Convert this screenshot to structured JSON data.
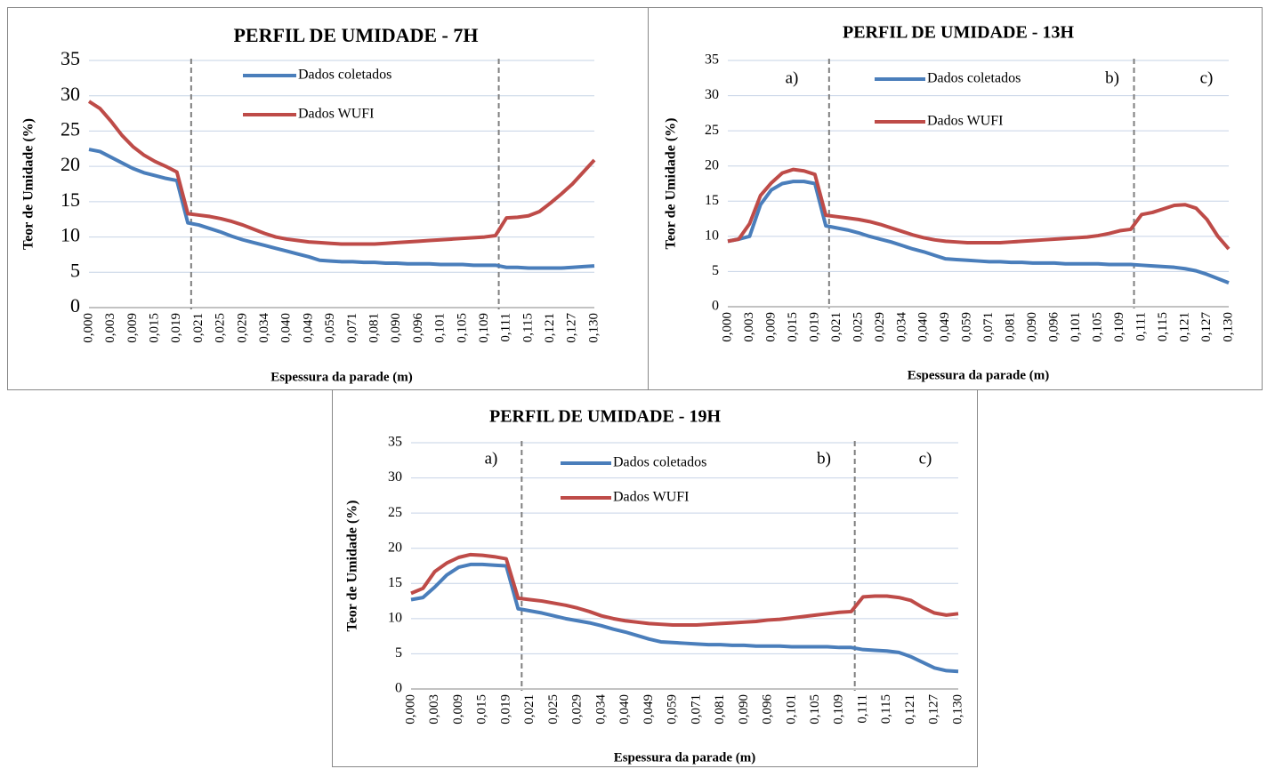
{
  "chart_data": [
    {
      "type": "line",
      "title": "PERFIL DE UMIDADE - 7H",
      "y_label": "Teor de Umidade (%)",
      "x_label": "Espessura da parade (m)",
      "categories": [
        "0,000",
        null,
        "0,003",
        null,
        "0,009",
        null,
        "0,015",
        null,
        "0,019",
        null,
        "0,021",
        null,
        "0,025",
        null,
        "0,029",
        null,
        "0,034",
        null,
        "0,040",
        null,
        "0,049",
        null,
        "0,059",
        null,
        "0,071",
        null,
        "0,081",
        null,
        "0,090",
        null,
        "0,096",
        null,
        "0,101",
        null,
        "0,105",
        null,
        "0,109",
        null,
        "0,111",
        null,
        "0,115",
        null,
        "0,121",
        null,
        "0,127",
        null,
        "0,130"
      ],
      "series": [
        {
          "name": "Dados coletados",
          "color": "#4a7ebb",
          "values": [
            22.4,
            22.1,
            21.3,
            20.5,
            19.7,
            19.1,
            18.7,
            18.3,
            18.0,
            12.0,
            11.7,
            11.2,
            10.7,
            10.1,
            9.6,
            9.2,
            8.8,
            8.4,
            8.0,
            7.6,
            7.2,
            6.7,
            6.6,
            6.5,
            6.5,
            6.4,
            6.4,
            6.3,
            6.3,
            6.2,
            6.2,
            6.2,
            6.1,
            6.1,
            6.1,
            6.0,
            6.0,
            6.0,
            5.7,
            5.7,
            5.6,
            5.6,
            5.6,
            5.6,
            5.7,
            5.8,
            5.9
          ]
        },
        {
          "name": "Dados WUFI",
          "color": "#be4b48",
          "values": [
            29.2,
            28.2,
            26.4,
            24.4,
            22.8,
            21.6,
            20.7,
            20.0,
            19.2,
            13.3,
            13.1,
            12.9,
            12.6,
            12.2,
            11.7,
            11.1,
            10.5,
            10.0,
            9.7,
            9.5,
            9.3,
            9.2,
            9.1,
            9.0,
            9.0,
            9.0,
            9.0,
            9.1,
            9.2,
            9.3,
            9.4,
            9.5,
            9.6,
            9.7,
            9.8,
            9.9,
            10.0,
            10.2,
            12.7,
            12.8,
            13.0,
            13.6,
            14.8,
            16.1,
            17.5,
            19.2,
            20.9
          ]
        }
      ],
      "ylim": [
        0,
        35
      ],
      "yticks": [
        0,
        5,
        10,
        15,
        20,
        25,
        30,
        35
      ],
      "grid": true
    },
    {
      "type": "line",
      "title": "PERFIL DE UMIDADE - 13H",
      "y_label": "Teor de Umidade (%)",
      "x_label": "Espessura da parade (m)",
      "annotations": [
        "a)",
        "b)",
        "c)"
      ],
      "categories": [
        "0,000",
        null,
        "0,003",
        null,
        "0,009",
        null,
        "0,015",
        null,
        "0,019",
        null,
        "0,021",
        null,
        "0,025",
        null,
        "0,029",
        null,
        "0,034",
        null,
        "0,040",
        null,
        "0,049",
        null,
        "0,059",
        null,
        "0,071",
        null,
        "0,081",
        null,
        "0,090",
        null,
        "0,096",
        null,
        "0,101",
        null,
        "0,105",
        null,
        "0,109",
        null,
        "0,111",
        null,
        "0,115",
        null,
        "0,121",
        null,
        "0,127",
        null,
        "0,130"
      ],
      "series": [
        {
          "name": "Dados coletados",
          "color": "#4a7ebb",
          "values": [
            9.3,
            9.6,
            10.0,
            14.5,
            16.6,
            17.5,
            17.8,
            17.8,
            17.5,
            11.5,
            11.2,
            10.9,
            10.5,
            10.0,
            9.6,
            9.2,
            8.7,
            8.2,
            7.8,
            7.3,
            6.8,
            6.7,
            6.6,
            6.5,
            6.4,
            6.4,
            6.3,
            6.3,
            6.2,
            6.2,
            6.2,
            6.1,
            6.1,
            6.1,
            6.1,
            6.0,
            6.0,
            6.0,
            5.9,
            5.8,
            5.7,
            5.6,
            5.4,
            5.1,
            4.6,
            4.0,
            3.4
          ]
        },
        {
          "name": "Dados WUFI",
          "color": "#be4b48",
          "values": [
            9.3,
            9.6,
            11.8,
            15.8,
            17.6,
            19.0,
            19.5,
            19.3,
            18.8,
            13.0,
            12.8,
            12.6,
            12.4,
            12.1,
            11.7,
            11.2,
            10.7,
            10.2,
            9.8,
            9.5,
            9.3,
            9.2,
            9.1,
            9.1,
            9.1,
            9.1,
            9.2,
            9.3,
            9.4,
            9.5,
            9.6,
            9.7,
            9.8,
            9.9,
            10.1,
            10.4,
            10.8,
            11.0,
            13.1,
            13.4,
            13.9,
            14.4,
            14.5,
            14.0,
            12.4,
            10.0,
            8.2
          ]
        }
      ],
      "ylim": [
        0,
        35
      ],
      "yticks": [
        0,
        5,
        10,
        15,
        20,
        25,
        30,
        35
      ],
      "grid": true
    },
    {
      "type": "line",
      "title": "PERFIL DE UMIDADE - 19H",
      "y_label": "Teor de Umidade (%)",
      "x_label": "Espessura da parade (m)",
      "annotations": [
        "a)",
        "b)",
        "c)"
      ],
      "categories": [
        "0,000",
        null,
        "0,003",
        null,
        "0,009",
        null,
        "0,015",
        null,
        "0,019",
        null,
        "0,021",
        null,
        "0,025",
        null,
        "0,029",
        null,
        "0,034",
        null,
        "0,040",
        null,
        "0,049",
        null,
        "0,059",
        null,
        "0,071",
        null,
        "0,081",
        null,
        "0,090",
        null,
        "0,096",
        null,
        "0,101",
        null,
        "0,105",
        null,
        "0,109",
        null,
        "0,111",
        null,
        "0,115",
        null,
        "0,121",
        null,
        "0,127",
        null,
        "0,130"
      ],
      "series": [
        {
          "name": "Dados coletados",
          "color": "#4a7ebb",
          "values": [
            12.7,
            13.0,
            14.5,
            16.2,
            17.3,
            17.7,
            17.7,
            17.6,
            17.5,
            11.4,
            11.1,
            10.8,
            10.4,
            10.0,
            9.7,
            9.4,
            9.0,
            8.5,
            8.1,
            7.6,
            7.1,
            6.7,
            6.6,
            6.5,
            6.4,
            6.3,
            6.3,
            6.2,
            6.2,
            6.1,
            6.1,
            6.1,
            6.0,
            6.0,
            6.0,
            6.0,
            5.9,
            5.9,
            5.6,
            5.5,
            5.4,
            5.2,
            4.6,
            3.8,
            3.0,
            2.6,
            2.5
          ]
        },
        {
          "name": "Dados WUFI",
          "color": "#be4b48",
          "values": [
            13.6,
            14.3,
            16.7,
            17.9,
            18.7,
            19.1,
            19.0,
            18.8,
            18.5,
            12.9,
            12.7,
            12.5,
            12.2,
            11.9,
            11.5,
            11.0,
            10.4,
            10.0,
            9.7,
            9.5,
            9.3,
            9.2,
            9.1,
            9.1,
            9.1,
            9.2,
            9.3,
            9.4,
            9.5,
            9.6,
            9.8,
            9.9,
            10.1,
            10.3,
            10.5,
            10.7,
            10.9,
            11.0,
            13.1,
            13.2,
            13.2,
            13.0,
            12.6,
            11.6,
            10.8,
            10.5,
            10.7
          ]
        }
      ],
      "ylim": [
        0,
        35
      ],
      "yticks": [
        0,
        5,
        10,
        15,
        20,
        25,
        30,
        35
      ],
      "grid": true
    }
  ]
}
